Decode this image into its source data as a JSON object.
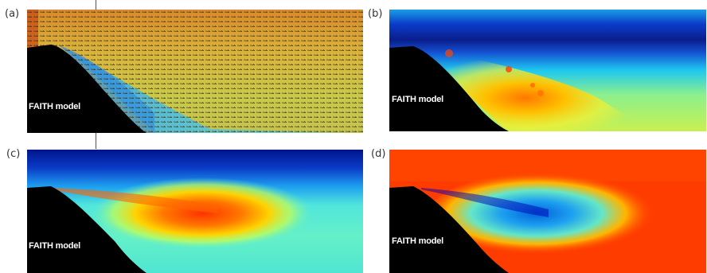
{
  "panels": [
    {
      "letter": "(a)",
      "model_label": "FAITH model",
      "field": "velocity vectors",
      "colors": [
        "#d4721e",
        "#e0a93a",
        "#b6c24a",
        "#42b6e6",
        "#1e86d8"
      ]
    },
    {
      "letter": "(b)",
      "model_label": "FAITH model",
      "field": "colormap",
      "colors": [
        "#0000c8",
        "#1ec8ff",
        "#f5f032",
        "#ff9600",
        "#ff3c00"
      ]
    },
    {
      "letter": "(c)",
      "model_label": "FAITH model",
      "field": "colormap",
      "colors": [
        "#00008c",
        "#00c8ff",
        "#c8ff50",
        "#ffc800",
        "#ff3200"
      ]
    },
    {
      "letter": "(d)",
      "model_label": "FAITH model",
      "field": "colormap",
      "colors": [
        "#ff3200",
        "#ffaa00",
        "#64e6c8",
        "#0064ff",
        "#0000b4"
      ]
    }
  ]
}
